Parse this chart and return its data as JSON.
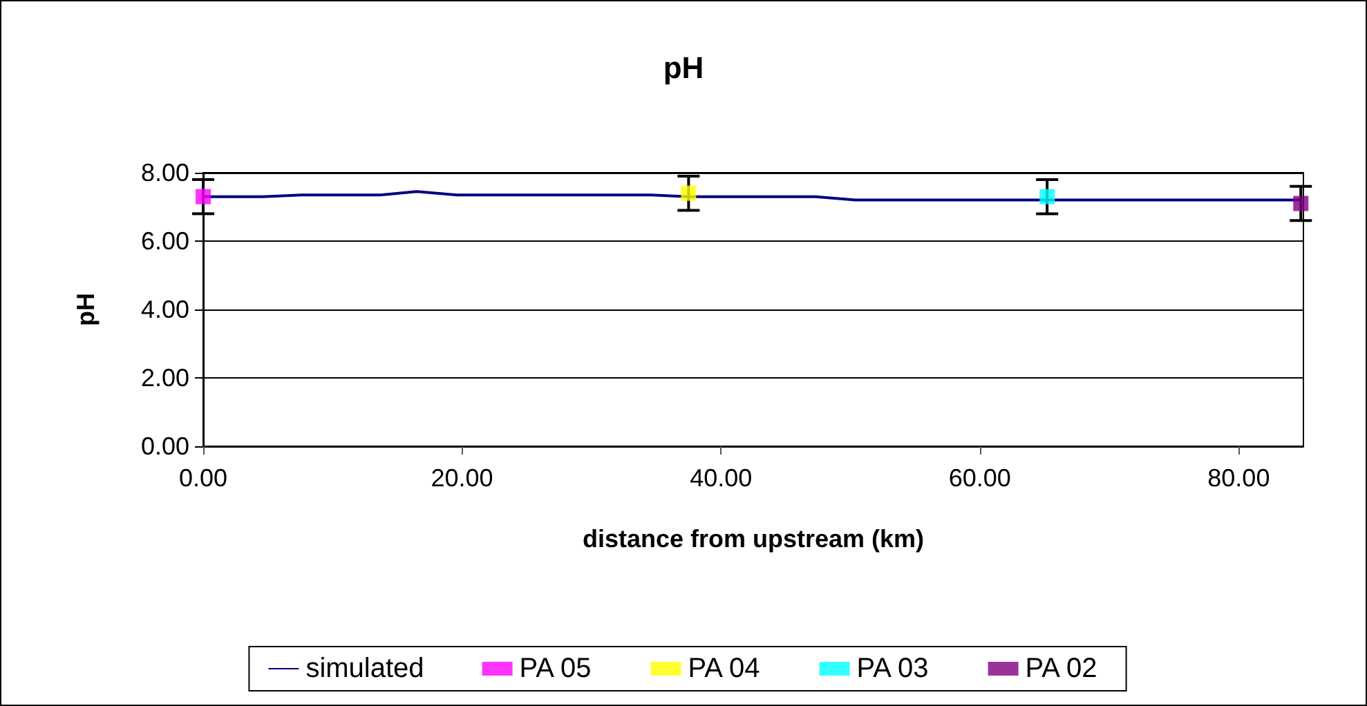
{
  "chart_data": {
    "type": "line",
    "title": "pH",
    "xlabel": "distance from upstream (km)",
    "ylabel": "pH",
    "xlim": [
      0,
      85
    ],
    "ylim": [
      0,
      8
    ],
    "xticks": [
      {
        "value": 0,
        "label": "0.00"
      },
      {
        "value": 20,
        "label": "20.00"
      },
      {
        "value": 40,
        "label": "40.00"
      },
      {
        "value": 60,
        "label": "60.00"
      },
      {
        "value": 80,
        "label": "80.00"
      }
    ],
    "yticks": [
      {
        "value": 0,
        "label": "0.00"
      },
      {
        "value": 2,
        "label": "2.00"
      },
      {
        "value": 4,
        "label": "4.00"
      },
      {
        "value": 6,
        "label": "6.00"
      },
      {
        "value": 8,
        "label": "8.00"
      }
    ],
    "grid": "y",
    "legend": "bottom",
    "series": [
      {
        "name": "simulated",
        "color": "#000080",
        "marker": "none",
        "line_style": "solid",
        "x": [
          0,
          4.6,
          7.6,
          13.7,
          16.5,
          19.6,
          34.6,
          37.5,
          47.3,
          50.4,
          84.8
        ],
        "values": [
          7.3,
          7.3,
          7.35,
          7.35,
          7.45,
          7.35,
          7.35,
          7.3,
          7.3,
          7.2,
          7.2
        ]
      },
      {
        "name": "PA 05",
        "type": "scatter",
        "color": "#ff00ff",
        "marker": "square",
        "x": [
          0
        ],
        "values": [
          7.3
        ],
        "errors": [
          0.5
        ]
      },
      {
        "name": "PA 04",
        "type": "scatter",
        "color": "#ffff00",
        "marker": "square",
        "x": [
          37.5
        ],
        "values": [
          7.4
        ],
        "errors": [
          0.5
        ]
      },
      {
        "name": "PA 03",
        "type": "scatter",
        "color": "#00ffff",
        "marker": "square",
        "x": [
          65.2
        ],
        "values": [
          7.3
        ],
        "errors": [
          0.5
        ]
      },
      {
        "name": "PA 02",
        "type": "scatter",
        "color": "#800080",
        "marker": "square",
        "x": [
          84.8
        ],
        "values": [
          7.1
        ],
        "errors": [
          0.5
        ]
      }
    ]
  }
}
